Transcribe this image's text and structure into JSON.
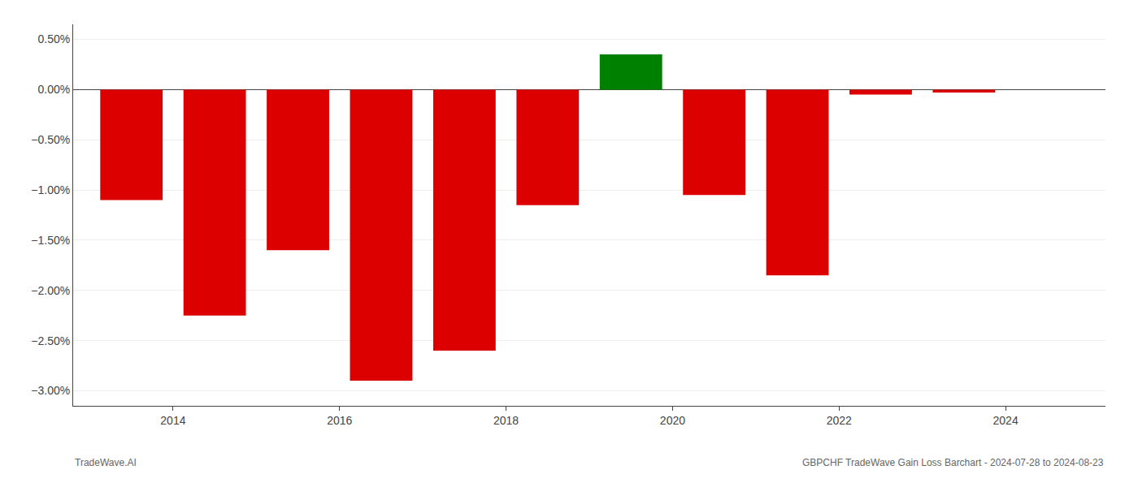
{
  "chart_data": {
    "type": "bar",
    "x": [
      2013.5,
      2014.5,
      2015.5,
      2016.5,
      2017.5,
      2018.5,
      2019.5,
      2020.5,
      2021.5,
      2022.5,
      2023.5
    ],
    "values": [
      -1.1,
      -2.25,
      -1.6,
      -2.9,
      -2.6,
      -1.15,
      0.35,
      -1.05,
      -1.85,
      -0.05,
      -0.03
    ],
    "colors": [
      "#dd0000",
      "#dd0000",
      "#dd0000",
      "#dd0000",
      "#dd0000",
      "#dd0000",
      "#008000",
      "#dd0000",
      "#dd0000",
      "#dd0000",
      "#dd0000"
    ],
    "xlim": [
      2012.8,
      2025.2
    ],
    "xticks": [
      2014,
      2016,
      2018,
      2020,
      2022,
      2024
    ],
    "ylim": [
      -3.15,
      0.65
    ],
    "yticks": [
      {
        "value": 0.5,
        "label": "0.50%"
      },
      {
        "value": 0.0,
        "label": "0.00%"
      },
      {
        "value": -0.5,
        "label": "−0.50%"
      },
      {
        "value": -1.0,
        "label": "−1.00%"
      },
      {
        "value": -1.5,
        "label": "−1.50%"
      },
      {
        "value": -2.0,
        "label": "−2.00%"
      },
      {
        "value": -2.5,
        "label": "−2.50%"
      },
      {
        "value": -3.0,
        "label": "−3.00%"
      }
    ],
    "grid": true,
    "annotations": [
      "TradeWave.AI",
      "GBPCHF TradeWave Gain Loss Barchart - 2024-07-28 to 2024-08-23"
    ]
  }
}
